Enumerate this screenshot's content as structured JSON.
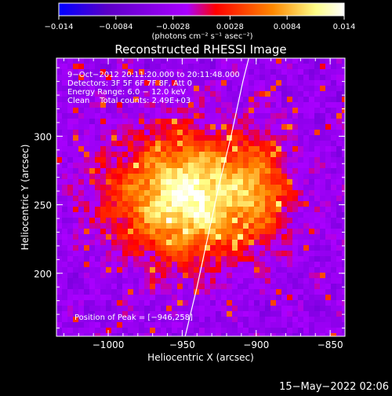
{
  "colorbar": {
    "ticks": [
      "−0.014",
      "−0.0084",
      "−0.0028",
      "0.0028",
      "0.0084",
      "0.014"
    ],
    "range": [
      -0.014,
      0.014
    ],
    "units_label": "(photons cm⁻² s⁻¹ asec⁻²)",
    "colors": [
      "#0000ff",
      "#5b00c8",
      "#aa00ff",
      "#ff0000",
      "#ff8800",
      "#ffff88",
      "#ffffff"
    ]
  },
  "chart_data": {
    "type": "heatmap",
    "title": "Reconstructed RHESSI Image",
    "xlabel": "Heliocentric X (arcsec)",
    "ylabel": "Heliocentric Y (arcsec)",
    "xlim": [
      -1035,
      -840
    ],
    "ylim": [
      154,
      357
    ],
    "xticks": [
      -1000,
      -950,
      -900,
      -850
    ],
    "xtick_labels": [
      "−1000",
      "−950",
      "−900",
      "−850"
    ],
    "yticks": [
      200,
      250,
      300
    ],
    "ytick_labels": [
      "200",
      "250",
      "300"
    ],
    "limb_curve": [
      [
        -948,
        154
      ],
      [
        -940,
        190
      ],
      [
        -932,
        230
      ],
      [
        -925,
        265
      ],
      [
        -917,
        300
      ],
      [
        -909,
        340
      ],
      [
        -905,
        357
      ]
    ],
    "annotations": [
      "9−Oct−2012 20:11:20.000 to 20:11:48.000",
      "Detectors: 3F 5F 6F 7F 8F, Att 0",
      "Energy Range: 6.0 − 12.0 keV",
      "Clean    Total counts: 2.49E+03"
    ],
    "peak_label": "Position of Peak = [−946,258]",
    "peak": [
      -946,
      258
    ]
  },
  "footer": {
    "timestamp": "15−May−2022 02:06"
  }
}
